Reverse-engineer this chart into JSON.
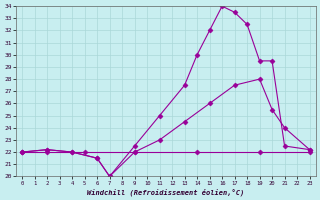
{
  "xlabel": "Windchill (Refroidissement éolien,°C)",
  "bg_color": "#c8eef0",
  "line_color": "#990099",
  "grid_color": "#aad8d8",
  "xlim": [
    -0.5,
    23.5
  ],
  "ylim": [
    20,
    34
  ],
  "xticks": [
    0,
    1,
    2,
    3,
    4,
    5,
    6,
    7,
    8,
    9,
    10,
    11,
    12,
    13,
    14,
    15,
    16,
    17,
    18,
    19,
    20,
    21,
    22,
    23
  ],
  "yticks": [
    20,
    21,
    22,
    23,
    24,
    25,
    26,
    27,
    28,
    29,
    30,
    31,
    32,
    33,
    34
  ],
  "line1_x": [
    0,
    2,
    5,
    9,
    14,
    19,
    23
  ],
  "line1_y": [
    22.0,
    22.0,
    22.0,
    22.0,
    22.0,
    22.0,
    22.0
  ],
  "line2_x": [
    0,
    2,
    4,
    6,
    7,
    9,
    11,
    13,
    15,
    17,
    19,
    20,
    21,
    23
  ],
  "line2_y": [
    22.0,
    22.2,
    22.0,
    21.5,
    20.0,
    22.0,
    23.0,
    24.5,
    26.0,
    27.5,
    28.0,
    25.5,
    24.0,
    22.2
  ],
  "line3_x": [
    0,
    2,
    4,
    6,
    7,
    9,
    11,
    13,
    14,
    15,
    16,
    17,
    18,
    19,
    20,
    21,
    23
  ],
  "line3_y": [
    22.0,
    22.2,
    22.0,
    21.5,
    20.0,
    22.5,
    25.0,
    27.5,
    30.0,
    32.0,
    34.0,
    33.5,
    32.5,
    29.5,
    29.5,
    22.5,
    22.2
  ],
  "marker": "D",
  "markersize": 2.5,
  "linewidth": 0.8
}
